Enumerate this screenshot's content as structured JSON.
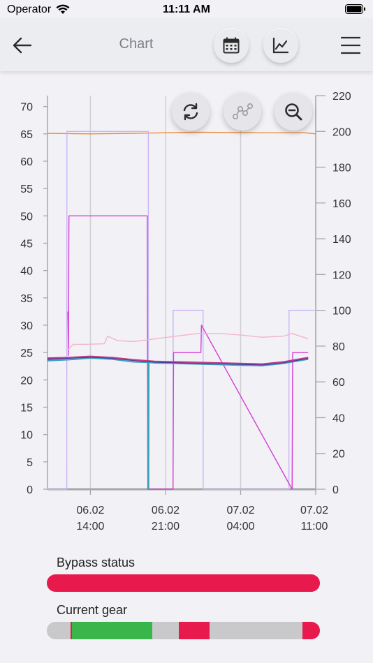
{
  "status_bar": {
    "carrier": "Operator",
    "time": "11:11 AM"
  },
  "header": {
    "title": "Chart"
  },
  "icons": {
    "back": "arrow-left-icon",
    "calendar": "calendar-icon",
    "chart_type": "line-chart-icon",
    "menu": "hamburger-menu-icon",
    "refresh": "refresh-icon",
    "points": "data-points-icon",
    "zoom": "zoom-out-icon"
  },
  "chart_data": {
    "type": "line",
    "x_ticks": [
      {
        "date": "06.02",
        "time": "14:00"
      },
      {
        "date": "06.02",
        "time": "21:00"
      },
      {
        "date": "07.02",
        "time": "04:00"
      },
      {
        "date": "07.02",
        "time": "11:00"
      }
    ],
    "xlim": [
      "06.02 10:00",
      "07.02 11:00"
    ],
    "y_left": {
      "ticks": [
        0,
        5,
        10,
        15,
        20,
        25,
        30,
        35,
        40,
        45,
        50,
        55,
        60,
        65,
        70
      ],
      "lim": [
        0,
        72
      ]
    },
    "y_right": {
      "ticks": [
        0,
        20,
        40,
        60,
        80,
        100,
        120,
        140,
        160,
        180,
        200,
        220
      ],
      "lim": [
        0,
        220
      ]
    },
    "grid": "vertical",
    "series": [
      {
        "color": "#f08a3c",
        "axis": "left",
        "x": [
          0,
          4,
          8,
          14,
          20,
          24,
          25
        ],
        "y": [
          65.1,
          65.0,
          65.1,
          65.3,
          65.2,
          65.2,
          65.0
        ]
      },
      {
        "color": "#c9b5f5",
        "axis": "right",
        "x": [
          0,
          1.8,
          1.81,
          9.4,
          9.41,
          11.7,
          11.71,
          14.5,
          14.51,
          22.5,
          22.51,
          25
        ],
        "y": [
          0,
          0,
          200,
          200,
          0,
          0,
          100,
          100,
          0,
          0,
          100,
          100
        ]
      },
      {
        "color": "#d63fd6",
        "axis": "left",
        "x": [
          1.9,
          1.95,
          2.0,
          9.3,
          9.35,
          11.7,
          11.75,
          14.3,
          14.35,
          22.8,
          22.85,
          24.3
        ],
        "y": [
          32.5,
          24.5,
          50,
          50,
          0,
          0,
          25,
          25,
          30,
          0,
          25,
          25
        ]
      },
      {
        "color": "#f4b6c8",
        "axis": "left",
        "x": [
          1.9,
          2.4,
          3.5,
          5.3,
          5.6,
          6.5,
          8.0,
          10,
          12,
          14,
          16,
          18,
          20,
          22,
          22.8,
          24.3
        ],
        "y": [
          25.5,
          26.5,
          26.5,
          26.6,
          28.0,
          27.2,
          27.0,
          27.5,
          28.0,
          28.5,
          28.5,
          28.2,
          27.8,
          28.0,
          28.5,
          27.5
        ]
      },
      {
        "color": "#3aa0b8",
        "axis": "left",
        "x": [
          0,
          2,
          4,
          6,
          8,
          9.4,
          9.42,
          9.44,
          10,
          12,
          14,
          16,
          18,
          20,
          22,
          24.3
        ],
        "y": [
          23.5,
          23.7,
          24.0,
          23.8,
          23.3,
          23.2,
          0,
          23.2,
          23.1,
          23.0,
          22.9,
          22.8,
          22.7,
          22.6,
          23.0,
          23.8
        ]
      },
      {
        "color": "#2e2fa8",
        "axis": "left",
        "x": [
          0,
          2,
          4,
          6,
          8,
          10,
          12,
          14,
          16,
          18,
          20,
          22,
          24.3
        ],
        "y": [
          23.8,
          24.0,
          24.2,
          24.0,
          23.6,
          23.3,
          23.2,
          23.1,
          23.0,
          22.9,
          22.8,
          23.2,
          24.0
        ]
      },
      {
        "color": "#c23a8c",
        "axis": "left",
        "x": [
          0,
          2,
          4,
          6,
          8,
          10,
          12,
          14,
          16,
          18,
          20,
          22,
          24.3
        ],
        "y": [
          24.0,
          24.1,
          24.3,
          24.1,
          23.7,
          23.4,
          23.3,
          23.2,
          23.1,
          23.0,
          22.9,
          23.3,
          24.1
        ]
      }
    ]
  },
  "bypass": {
    "label": "Bypass status",
    "segments": [
      {
        "start": 0.0,
        "end": 1.0,
        "color": "#e8194d"
      }
    ]
  },
  "gear": {
    "label": "Current gear",
    "segments": [
      {
        "start": 0.0,
        "end": 0.087,
        "color": "#c9c9cb"
      },
      {
        "start": 0.087,
        "end": 0.093,
        "color": "#e8194d"
      },
      {
        "start": 0.093,
        "end": 0.387,
        "color": "#39b54a"
      },
      {
        "start": 0.387,
        "end": 0.483,
        "color": "#c9c9cb"
      },
      {
        "start": 0.483,
        "end": 0.595,
        "color": "#e8194d"
      },
      {
        "start": 0.595,
        "end": 0.937,
        "color": "#c9c9cb"
      },
      {
        "start": 0.937,
        "end": 1.0,
        "color": "#e8194d"
      }
    ]
  }
}
